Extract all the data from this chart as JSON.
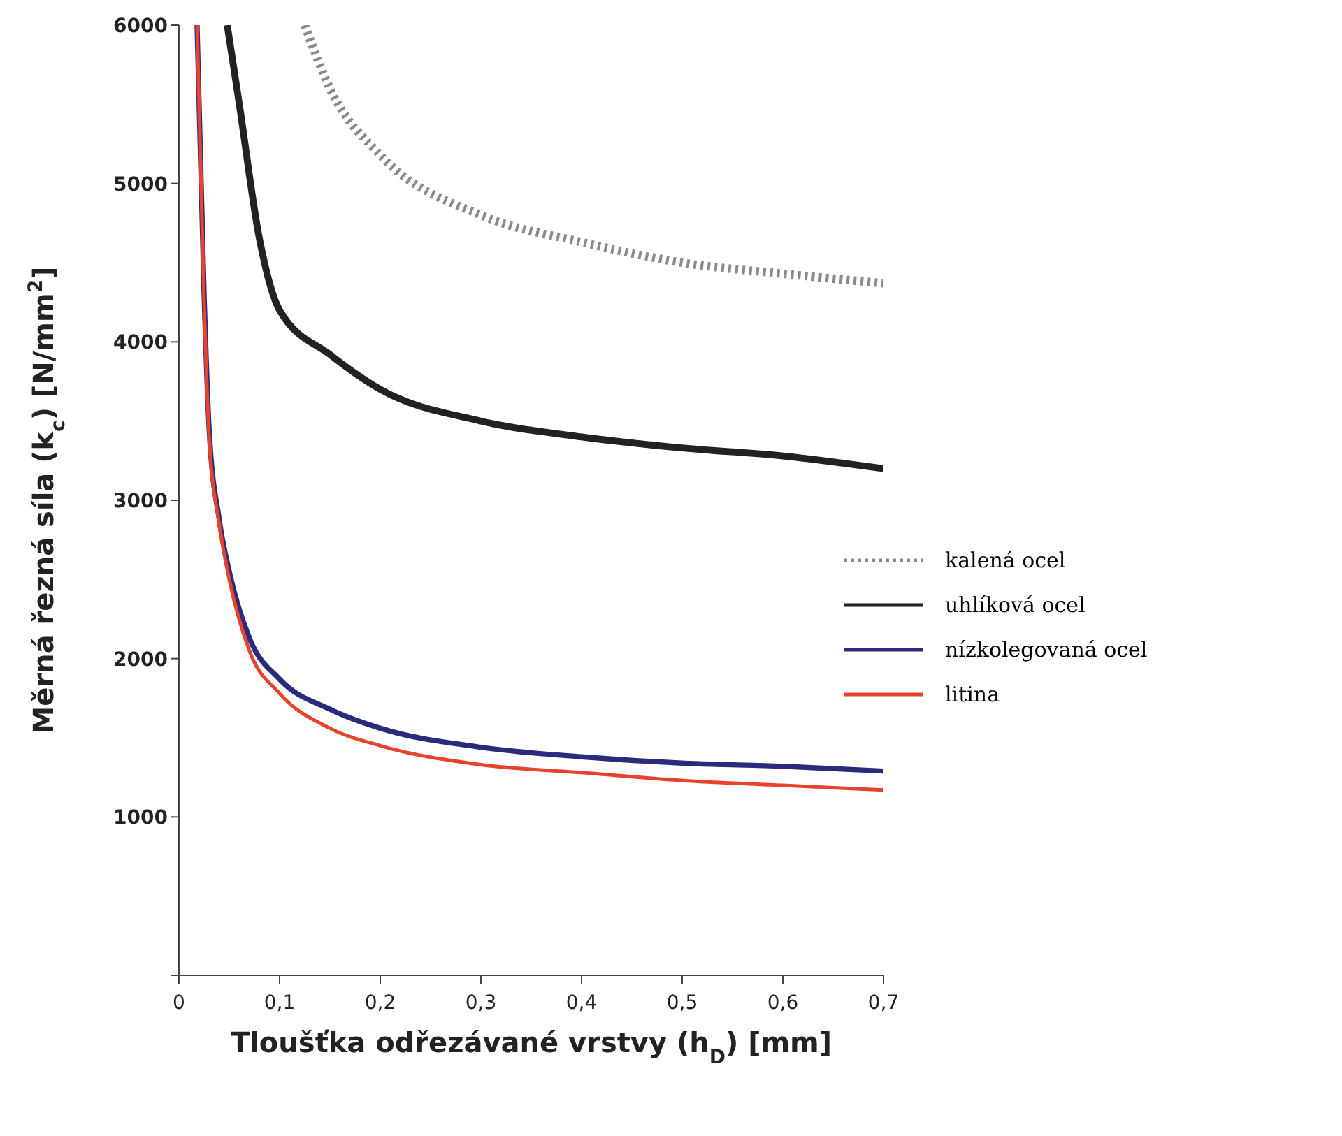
{
  "chart_data": {
    "type": "line",
    "xlabel": "Tloušťka odřezávané vrstvy (h$_{D}$)  [mm]",
    "ylabel": "Měrná řezná síla (k$_{c}$)  [N/mm$^{2}$]",
    "xlim": [
      0,
      0.7
    ],
    "xticks": [
      0,
      {
        "value": 0.1,
        "label": "0,1"
      },
      {
        "value": 0.2,
        "label": "0,2"
      },
      {
        "value": 0.3,
        "label": "0,3"
      },
      {
        "value": 0.4,
        "label": "0,4"
      },
      {
        "value": 0.5,
        "label": "0,5"
      },
      {
        "value": 0.6,
        "label": "0,6"
      },
      {
        "value": 0.7,
        "label": "0,7"
      }
    ],
    "ylim": [
      0,
      6000
    ],
    "yticks": [
      {
        "value": 0,
        "label": null
      },
      1000,
      2000,
      3000,
      4000,
      5000,
      6000
    ],
    "grid": false,
    "legend": "right",
    "marker": "none",
    "series": [
      {
        "name": "kalená ocel",
        "color": "#8a8a8a",
        "line_style": "dotted",
        "x": [
          0.125,
          0.15,
          0.2,
          0.3,
          0.4,
          0.5,
          0.6,
          0.7
        ],
        "values": [
          6000,
          5600,
          5180,
          4800,
          4630,
          4500,
          4430,
          4370
        ]
      },
      {
        "name": "uhlíková ocel",
        "color": "#222222",
        "line_style": "solid",
        "x": [
          0.048,
          0.06,
          0.08,
          0.1,
          0.15,
          0.2,
          0.3,
          0.4,
          0.5,
          0.6,
          0.7
        ],
        "values": [
          6000,
          5500,
          4650,
          4200,
          3920,
          3700,
          3500,
          3400,
          3330,
          3280,
          3200
        ]
      },
      {
        "name": "nízkolegovaná ocel",
        "color": "#2b2b7e",
        "line_style": "solid",
        "x": [
          0.018,
          0.025,
          0.03,
          0.04,
          0.05,
          0.07,
          0.1,
          0.15,
          0.2,
          0.3,
          0.4,
          0.5,
          0.6,
          0.7
        ],
        "values": [
          6000,
          4300,
          3450,
          2880,
          2550,
          2130,
          1870,
          1680,
          1560,
          1440,
          1380,
          1340,
          1320,
          1290
        ]
      },
      {
        "name": "litina",
        "color": "#e8412c",
        "line_style": "solid",
        "x": [
          0.018,
          0.025,
          0.03,
          0.04,
          0.05,
          0.07,
          0.1,
          0.15,
          0.2,
          0.3,
          0.4,
          0.5,
          0.6,
          0.7
        ],
        "values": [
          6000,
          4250,
          3400,
          2850,
          2500,
          2050,
          1780,
          1560,
          1450,
          1330,
          1280,
          1230,
          1200,
          1170
        ]
      }
    ]
  }
}
